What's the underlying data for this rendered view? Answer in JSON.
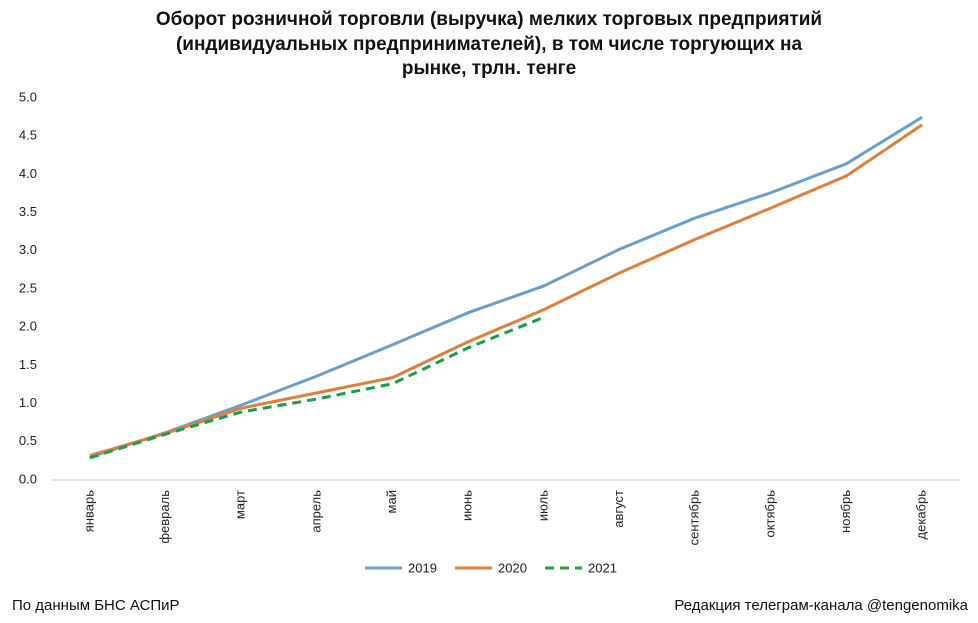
{
  "chart_data": {
    "type": "line",
    "title": [
      "Оборот розничной торговли (выручка) мелких торговых предприятий",
      "(индивидуальных предпринимателей), в том числе торгующих на",
      "рынке, трлн. тенге"
    ],
    "categories": [
      "январь",
      "февраль",
      "март",
      "апрель",
      "май",
      "июнь",
      "июль",
      "август",
      "сентябрь",
      "октябрь",
      "ноябрь",
      "декабрь"
    ],
    "series": [
      {
        "name": "2019",
        "color": "#6a9fcc",
        "line_style": "solid",
        "values": [
          0.3,
          0.62,
          0.98,
          1.36,
          1.77,
          2.19,
          2.54,
          3.02,
          3.43,
          3.76,
          4.14,
          4.75
        ]
      },
      {
        "name": "2020",
        "color": "#e07f3a",
        "line_style": "solid",
        "values": [
          0.32,
          0.61,
          0.94,
          1.14,
          1.34,
          1.81,
          2.23,
          2.71,
          3.15,
          3.56,
          3.98,
          4.65
        ]
      },
      {
        "name": "2021",
        "color": "#1a9e4a",
        "line_style": "dashed",
        "values": [
          0.29,
          0.6,
          0.89,
          1.06,
          1.26,
          1.73,
          2.13,
          null,
          null,
          null,
          null,
          null
        ]
      }
    ],
    "ylim": [
      0,
      5
    ],
    "yticks": [
      {
        "value": 0,
        "label": "0.0"
      },
      0.5,
      {
        "value": 1,
        "label": "1.0"
      },
      1.5,
      {
        "value": 2,
        "label": "2.0"
      },
      2.5,
      {
        "value": 3,
        "label": "3.0"
      },
      3.5,
      {
        "value": 4,
        "label": "4.0"
      },
      4.5,
      {
        "value": 5,
        "label": "5.0"
      }
    ],
    "grid": false,
    "legend": "bottom"
  },
  "footer": {
    "left": "По данным БНС АСПиР",
    "right": "Редакция телеграм-канала @tengenomika"
  }
}
